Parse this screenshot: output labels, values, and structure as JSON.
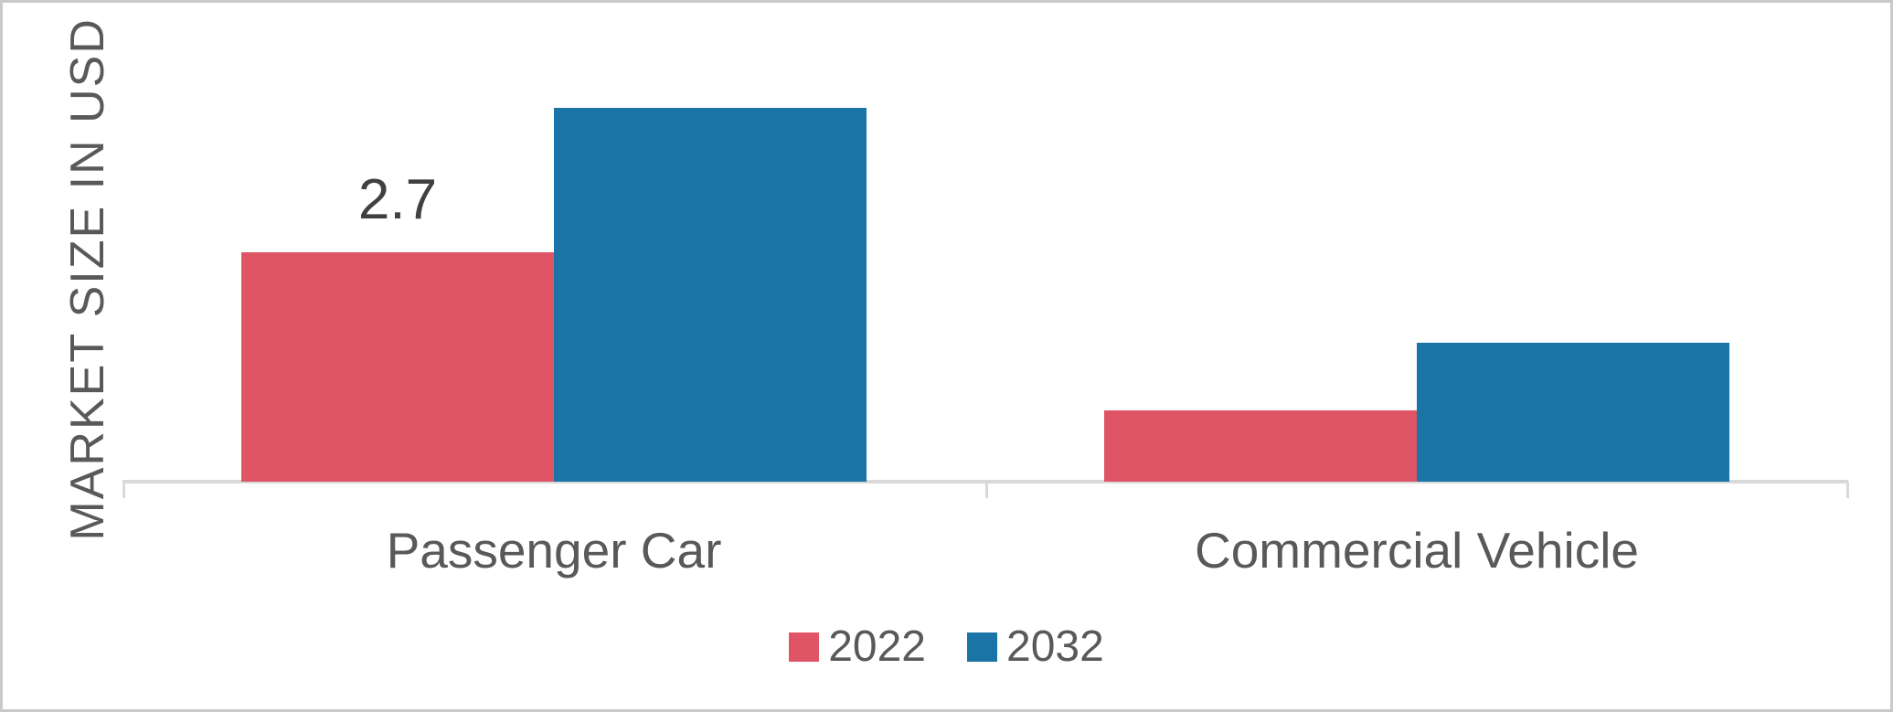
{
  "chart_data": {
    "type": "bar",
    "title": "",
    "categories": [
      "Passenger Car",
      "Commercial Vehicle"
    ],
    "series": [
      {
        "name": "2022",
        "color": "#E05566",
        "values": [
          2.7,
          0.84
        ],
        "data_labels": [
          "2.7",
          ""
        ]
      },
      {
        "name": "2032",
        "color": "#1B74A6",
        "values": [
          4.4,
          1.63
        ],
        "data_labels": [
          "",
          ""
        ]
      }
    ],
    "xlabel": "",
    "ylabel": "MARKET SIZE IN USD BN",
    "ylim": [
      0,
      4.8
    ],
    "grid": false,
    "legend_position": "bottom-center",
    "colors": {
      "axis_line": "#D9D9D9",
      "axis_text": "#595959",
      "data_label_text": "#404040",
      "background": "#FFFFFF",
      "frame_border": "#C9C9C9"
    }
  }
}
